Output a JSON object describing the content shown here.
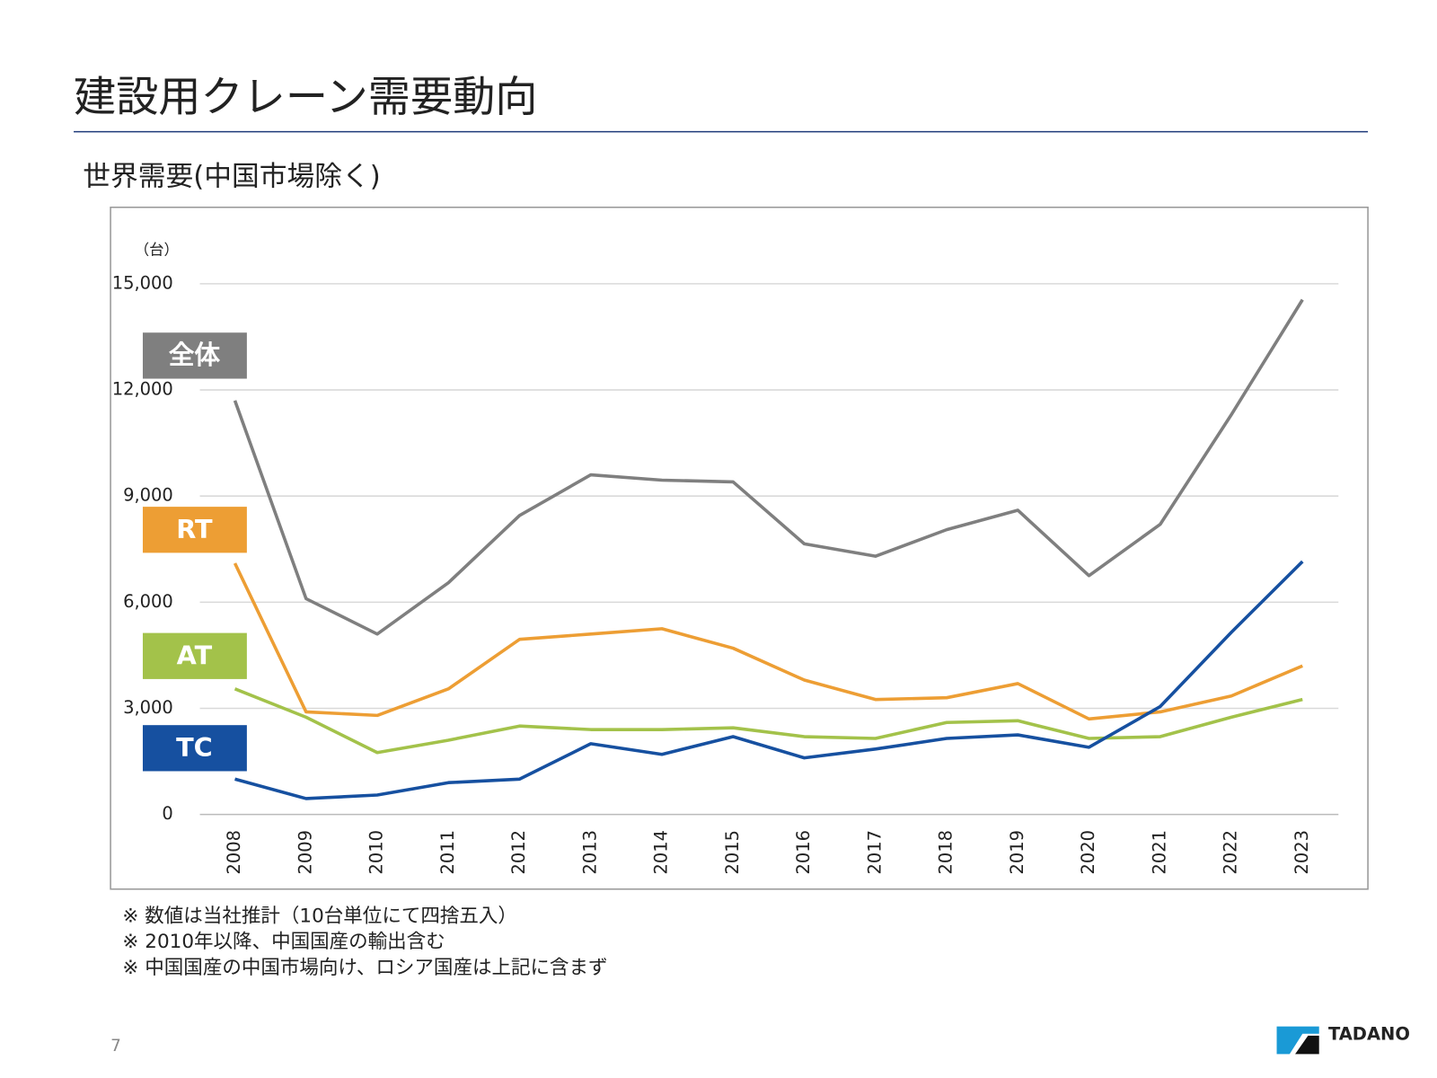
{
  "title": "建設用クレーン需要動向",
  "notes": [
    "※ 数値は当社推計（10台単位にて四捨五入）",
    "※ 2010年以降、中国国産の輸出含む",
    "※ 中国国産の中国市場向け、ロシア国産は上記に含まず"
  ],
  "page_number": "7",
  "logo": "TADANO",
  "chart_data": {
    "type": "line",
    "title": "世界需要(中国市場除く)",
    "y_label": "（台）",
    "categories": [
      "2008",
      "2009",
      "2010",
      "2011",
      "2012",
      "2013",
      "2014",
      "2015",
      "2016",
      "2017",
      "2018",
      "2019",
      "2020",
      "2021",
      "2022",
      "2023"
    ],
    "series": [
      {
        "name": "全体",
        "color": "#7f7f7f",
        "values": [
          11700,
          6100,
          5100,
          6550,
          8450,
          9600,
          9450,
          9400,
          7650,
          7300,
          8050,
          8600,
          6750,
          8200,
          11300,
          14550
        ]
      },
      {
        "name": "RT",
        "color": "#ed9e34",
        "values": [
          7100,
          2900,
          2800,
          3550,
          4950,
          5100,
          5250,
          4700,
          3800,
          3250,
          3300,
          3700,
          2700,
          2900,
          3350,
          4200
        ]
      },
      {
        "name": "AT",
        "color": "#a3c24a",
        "values": [
          3550,
          2750,
          1750,
          2100,
          2500,
          2400,
          2400,
          2450,
          2200,
          2150,
          2600,
          2650,
          2150,
          2200,
          2750,
          3250
        ]
      },
      {
        "name": "TC",
        "color": "#1650a0",
        "values": [
          1000,
          450,
          550,
          900,
          1000,
          2000,
          1700,
          2200,
          1600,
          1850,
          2150,
          2250,
          1900,
          3050,
          5150,
          7150
        ]
      }
    ],
    "ylim": [
      0,
      15000
    ],
    "yticks": [
      0,
      {
        "value": 3000,
        "label": "3,000"
      },
      {
        "value": 6000,
        "label": "6,000"
      },
      {
        "value": 9000,
        "label": "9,000"
      },
      {
        "value": 12000,
        "label": "12,000"
      },
      {
        "value": 15000,
        "label": "15,000"
      }
    ],
    "grid": true
  }
}
